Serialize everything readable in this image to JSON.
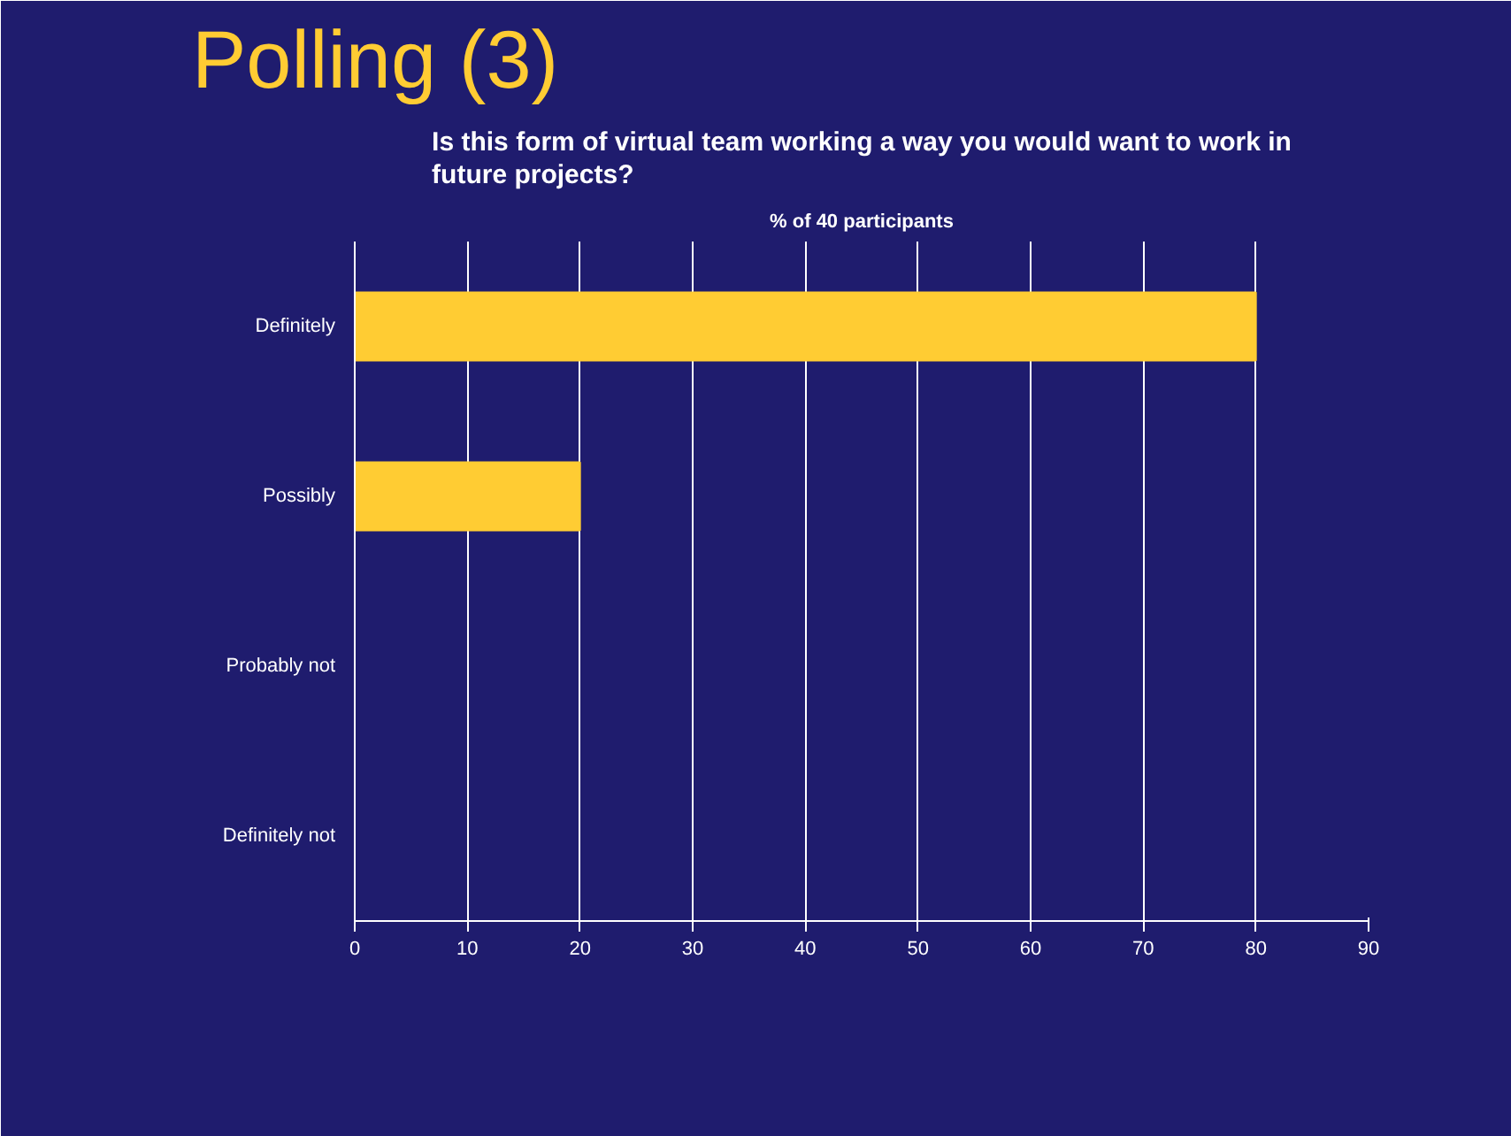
{
  "chart_data": {
    "type": "bar",
    "orientation": "horizontal",
    "title": "Polling (3)",
    "subtitle": "Is this form of virtual team working a way you would want to work in future projects?",
    "annotations": [
      "% of 40 participants"
    ],
    "categories": [
      "Definitely",
      "Possibly",
      "Probably not",
      "Definitely not"
    ],
    "values": [
      80,
      20,
      0,
      0
    ],
    "color": "#ffcc33",
    "xlim": [
      0,
      90
    ],
    "xticks": [
      0,
      10,
      20,
      30,
      40,
      50,
      60,
      70,
      80,
      90
    ],
    "grid": "x"
  }
}
